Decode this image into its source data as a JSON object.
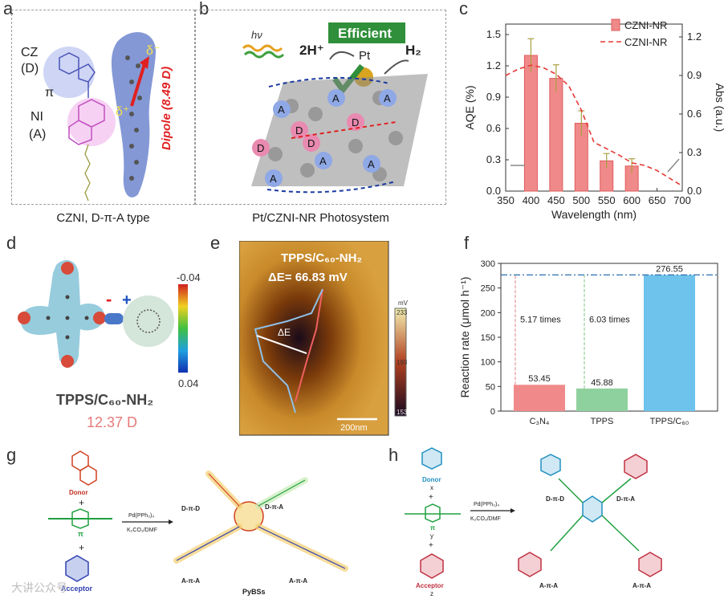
{
  "panels": {
    "a": {
      "letter": "a",
      "cz": "CZ",
      "d": "(D)",
      "pi": "π",
      "ni": "NI",
      "acc": "(A)",
      "delta_minus": "δ⁻",
      "delta_plus": "δ⁺",
      "dipole": "Dipole (8.49 D)",
      "caption": "CZNI, D-π-A type"
    },
    "b": {
      "letter": "b",
      "hv": "hν",
      "efficient": "Efficient",
      "h2plus": "2H⁺",
      "pt": "Pt",
      "h2": "H₂",
      "caption": "Pt/CZNI-NR Photosystem",
      "A": "A",
      "D": "D"
    },
    "c": {
      "letter": "c"
    },
    "d": {
      "letter": "d",
      "scale_top": "-0.04",
      "scale_bottom": "0.04",
      "minus": "-",
      "plus": "+",
      "title": "TPPS/C₆₀-NH₂",
      "dipole": "12.37 D"
    },
    "e": {
      "letter": "e",
      "title": "TPPS/C₆₀-NH₂",
      "delta": "ΔE= 66.83 mV",
      "delta_label": "ΔE",
      "scalebar": "200nm",
      "unit": "mV",
      "top": "233",
      "mid": "193",
      "bottom": "153"
    },
    "f": {
      "letter": "f"
    },
    "g": {
      "letter": "g",
      "donor": "Donor",
      "plus1": "+",
      "pi": "π",
      "plus2": "+",
      "acceptor": "Acceptor",
      "reagent1": "Pd(PPh₃)₄",
      "reagent2": "K₂CO₃/DMF",
      "arm_dpd": "D-π-D",
      "arm_dpa": "D-π-A",
      "arm_apa1": "A-π-A",
      "arm_apa2": "A-π-A",
      "name": "PyBSs"
    },
    "h": {
      "letter": "h",
      "donor": "Donor",
      "x": "x",
      "plus1": "+",
      "pi": "π",
      "y": "y",
      "plus2": "+",
      "acceptor": "Acceptor",
      "z": "z",
      "reagent1": "Pd(PPh₃)₄",
      "reagent2": "K₂CO₃/DMF",
      "arm_dpd": "D-π-D",
      "arm_dpa": "D-π-A",
      "arm_apa1": "A-π-A",
      "arm_apa2": "A-π-A"
    }
  },
  "watermark": "大讲公众号",
  "colors": {
    "bar_red": "#f08a8a",
    "bar_green": "#8fd19e",
    "bar_blue": "#6ec3ec",
    "dashed": "#e53935",
    "orange": "#f0a030"
  },
  "chart_data": [
    {
      "type": "bar",
      "title": "",
      "xlabel": "Wavelength (nm)",
      "ylabel": "AQE (%)",
      "ylabel2": "Abs (a.u.)",
      "xlim": [
        350,
        700
      ],
      "ylim": [
        0,
        1.6
      ],
      "ylim2": [
        0,
        1.3
      ],
      "xticks": [
        "350",
        "400",
        "450",
        "500",
        "550",
        "600",
        "650",
        "700"
      ],
      "yticks": [
        "0.0",
        "0.3",
        "0.6",
        "0.9",
        "1.2",
        "1.5"
      ],
      "yticks2": [
        "0.0",
        "0.3",
        "0.6",
        "0.9",
        "1.2"
      ],
      "legend": [
        "CZNI-NR",
        "CZNI-NR"
      ],
      "legend_position": "top-right",
      "bars": {
        "name": "CZNI-NR",
        "x": [
          400,
          450,
          500,
          550,
          600
        ],
        "values": [
          1.3,
          1.08,
          0.65,
          0.29,
          0.24
        ],
        "errors": [
          0.16,
          0.13,
          0.12,
          0.07,
          0.07
        ]
      },
      "line": {
        "name": "CZNI-NR",
        "axis": "right",
        "x": [
          350,
          375,
          400,
          425,
          450,
          475,
          500,
          525,
          550,
          575,
          600,
          625,
          650,
          675,
          700
        ],
        "values": [
          0.9,
          0.95,
          0.98,
          0.96,
          0.91,
          0.82,
          0.63,
          0.38,
          0.33,
          0.28,
          0.22,
          0.2,
          0.16,
          0.1,
          0.04
        ]
      }
    },
    {
      "type": "bar",
      "title": "",
      "xlabel": "",
      "ylabel": "Reaction rate (μmol h⁻¹)",
      "ylim": [
        0,
        300
      ],
      "yticks": [
        "0",
        "50",
        "100",
        "150",
        "200",
        "250",
        "300"
      ],
      "categories": [
        "C₃N₄",
        "TPPS",
        "TPPS/C₆₀"
      ],
      "values": [
        53.45,
        45.88,
        276.55
      ],
      "value_labels": [
        "53.45",
        "45.88",
        "276.55"
      ],
      "annotations": [
        "5.17 times",
        "6.03 times"
      ]
    }
  ]
}
